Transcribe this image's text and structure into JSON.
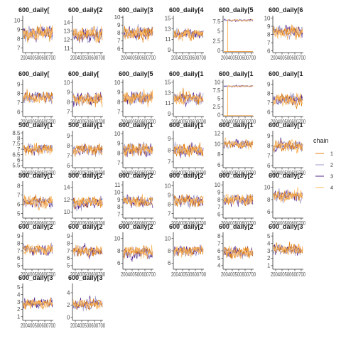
{
  "chart_data": {
    "type": "line",
    "chart_kind": "MCMC trace plots (facet grid)",
    "x_ticks": [
      "200",
      "400",
      "500",
      "600",
      "700"
    ],
    "x_tick_text": "200400500600700",
    "legend": {
      "title": "chain",
      "placement": "right",
      "entries": [
        {
          "label": "1",
          "color": "#e08214"
        },
        {
          "label": "2",
          "color": "#9e9ac8"
        },
        {
          "label": "3",
          "color": "#54278f"
        },
        {
          "label": "4",
          "color": "#fdb863"
        }
      ]
    },
    "panels": [
      {
        "title": "600_daily[",
        "yticks": [
          7,
          8,
          9,
          10
        ],
        "ylim": [
          6.5,
          10.5
        ],
        "center": 8.6,
        "spread": 0.8
      },
      {
        "title": "600_daily[2",
        "yticks": [
          11,
          12,
          13,
          14
        ],
        "ylim": [
          10.5,
          14.8
        ],
        "center": 12.5,
        "spread": 0.9
      },
      {
        "title": "600_daily[3",
        "yticks": [
          6,
          7,
          8,
          9,
          10
        ],
        "ylim": [
          5.5,
          10.2
        ],
        "center": 8.0,
        "spread": 0.9
      },
      {
        "title": "600_daily[4",
        "yticks": [
          9,
          11,
          13,
          15
        ],
        "ylim": [
          8.5,
          15.5
        ],
        "center": 12.0,
        "spread": 1.1
      },
      {
        "title": "600_daily[5",
        "yticks": [
          0.0,
          2.5,
          5.0,
          7.5
        ],
        "ylim": [
          -0.5,
          9.0
        ],
        "center": 7.8,
        "spread": 0.3,
        "stuck": true
      },
      {
        "title": "600_daily[6",
        "yticks": [
          6,
          7,
          8,
          9,
          10
        ],
        "ylim": [
          5.8,
          10.3
        ],
        "center": 8.3,
        "spread": 0.8
      },
      {
        "title": "600_daily[",
        "yticks": [
          6,
          7,
          8,
          9
        ],
        "ylim": [
          5.5,
          9.5
        ],
        "center": 7.6,
        "spread": 0.7
      },
      {
        "title": "600_daily[",
        "yticks": [
          7,
          8,
          9,
          10
        ],
        "ylim": [
          6.5,
          10.3
        ],
        "center": 8.3,
        "spread": 0.7
      },
      {
        "title": "600_daily[5",
        "yticks": [
          7,
          8,
          9,
          10
        ],
        "ylim": [
          6.5,
          10.3
        ],
        "center": 8.4,
        "spread": 0.7
      },
      {
        "title": "600_daily[1",
        "yticks": [
          9,
          11,
          13,
          15
        ],
        "ylim": [
          8.5,
          15.5
        ],
        "center": 12.0,
        "spread": 1.2
      },
      {
        "title": "600_daily[1",
        "yticks": [
          0.0,
          2.5,
          5.0,
          7.5,
          10.0
        ],
        "ylim": [
          -0.5,
          10.8
        ],
        "center": 8.8,
        "spread": 0.3,
        "stuck": true
      },
      {
        "title": "600_daily[1",
        "yticks": [
          6,
          7,
          8,
          9
        ],
        "ylim": [
          5.5,
          9.5
        ],
        "center": 7.4,
        "spread": 0.7
      },
      {
        "title": "500_daily[1",
        "yticks": [
          5.5,
          6.0,
          6.5,
          7.0,
          7.5,
          8.0,
          8.5
        ],
        "ylim": [
          5.3,
          8.7
        ],
        "center": 7.0,
        "spread": 0.5
      },
      {
        "title": "500_daily[1",
        "yticks": [
          6,
          7,
          8,
          9
        ],
        "ylim": [
          5.8,
          9.5
        ],
        "center": 7.6,
        "spread": 0.6
      },
      {
        "title": "600_daily[1",
        "yticks": [
          7,
          8,
          9,
          10
        ],
        "ylim": [
          6.5,
          10.3
        ],
        "center": 8.4,
        "spread": 0.7
      },
      {
        "title": "600_daily[1",
        "yticks": [
          7,
          8,
          9
        ],
        "ylim": [
          6.5,
          9.7
        ],
        "center": 8.0,
        "spread": 0.6
      },
      {
        "title": "600_daily[1",
        "yticks": [
          6,
          8,
          10,
          12
        ],
        "ylim": [
          5.5,
          12.5
        ],
        "center": 10.0,
        "spread": 0.8
      },
      {
        "title": "600_daily[1",
        "yticks": [
          6,
          7,
          8,
          9
        ],
        "ylim": [
          5.8,
          9.5
        ],
        "center": 8.0,
        "spread": 0.6
      },
      {
        "title": "500_daily[1",
        "yticks": [
          5,
          6,
          7,
          8
        ],
        "ylim": [
          4.5,
          8.5
        ],
        "center": 6.3,
        "spread": 0.7
      },
      {
        "title": "500_daily[2",
        "yticks": [
          10,
          12,
          14
        ],
        "ylim": [
          9,
          15
        ],
        "center": 11.5,
        "spread": 1.0
      },
      {
        "title": "600_daily[2",
        "yticks": [
          7,
          8,
          9,
          10,
          11
        ],
        "ylim": [
          6.5,
          11.5
        ],
        "center": 8.8,
        "spread": 0.8
      },
      {
        "title": "600_daily[2",
        "yticks": [
          7,
          8,
          9,
          10
        ],
        "ylim": [
          6.5,
          10.5
        ],
        "center": 8.4,
        "spread": 0.7
      },
      {
        "title": "600_daily[2",
        "yticks": [
          6,
          7,
          8,
          9,
          10
        ],
        "ylim": [
          5.5,
          10.5
        ],
        "center": 8.0,
        "spread": 0.8
      },
      {
        "title": "600_daily[2",
        "yticks": [
          6,
          8,
          10
        ],
        "ylim": [
          5,
          11
        ],
        "center": 8.6,
        "spread": 0.9
      },
      {
        "title": "600_daily[2",
        "yticks": [
          5,
          6,
          7,
          8,
          9
        ],
        "ylim": [
          4.5,
          9.5
        ],
        "center": 7.2,
        "spread": 0.8
      },
      {
        "title": "600_daily[2",
        "yticks": [
          5,
          6,
          7,
          8,
          9
        ],
        "ylim": [
          4.5,
          9.5
        ],
        "center": 7.0,
        "spread": 0.8
      },
      {
        "title": "600_daily[2",
        "yticks": [
          6,
          8,
          10
        ],
        "ylim": [
          5,
          11
        ],
        "center": 7.8,
        "spread": 1.0
      },
      {
        "title": "600_daily[2",
        "yticks": [
          6,
          8,
          10
        ],
        "ylim": [
          5,
          11
        ],
        "center": 8.0,
        "spread": 0.9
      },
      {
        "title": "600_daily[2",
        "yticks": [
          4,
          5,
          6,
          7,
          8
        ],
        "ylim": [
          3.5,
          8.5
        ],
        "center": 5.8,
        "spread": 0.8
      },
      {
        "title": "600_daily[3",
        "yticks": [
          1,
          2,
          3,
          4,
          5
        ],
        "ylim": [
          0.5,
          5.5
        ],
        "center": 3.2,
        "spread": 0.8
      },
      {
        "title": "600_daily[3",
        "yticks": [
          1,
          2,
          3,
          4,
          5
        ],
        "ylim": [
          0.5,
          5.5
        ],
        "center": 2.8,
        "spread": 0.7
      },
      {
        "title": "600_daily[3",
        "yticks": [
          0,
          2,
          4
        ],
        "ylim": [
          -0.5,
          5.5
        ],
        "center": 2.2,
        "spread": 0.9
      }
    ]
  }
}
